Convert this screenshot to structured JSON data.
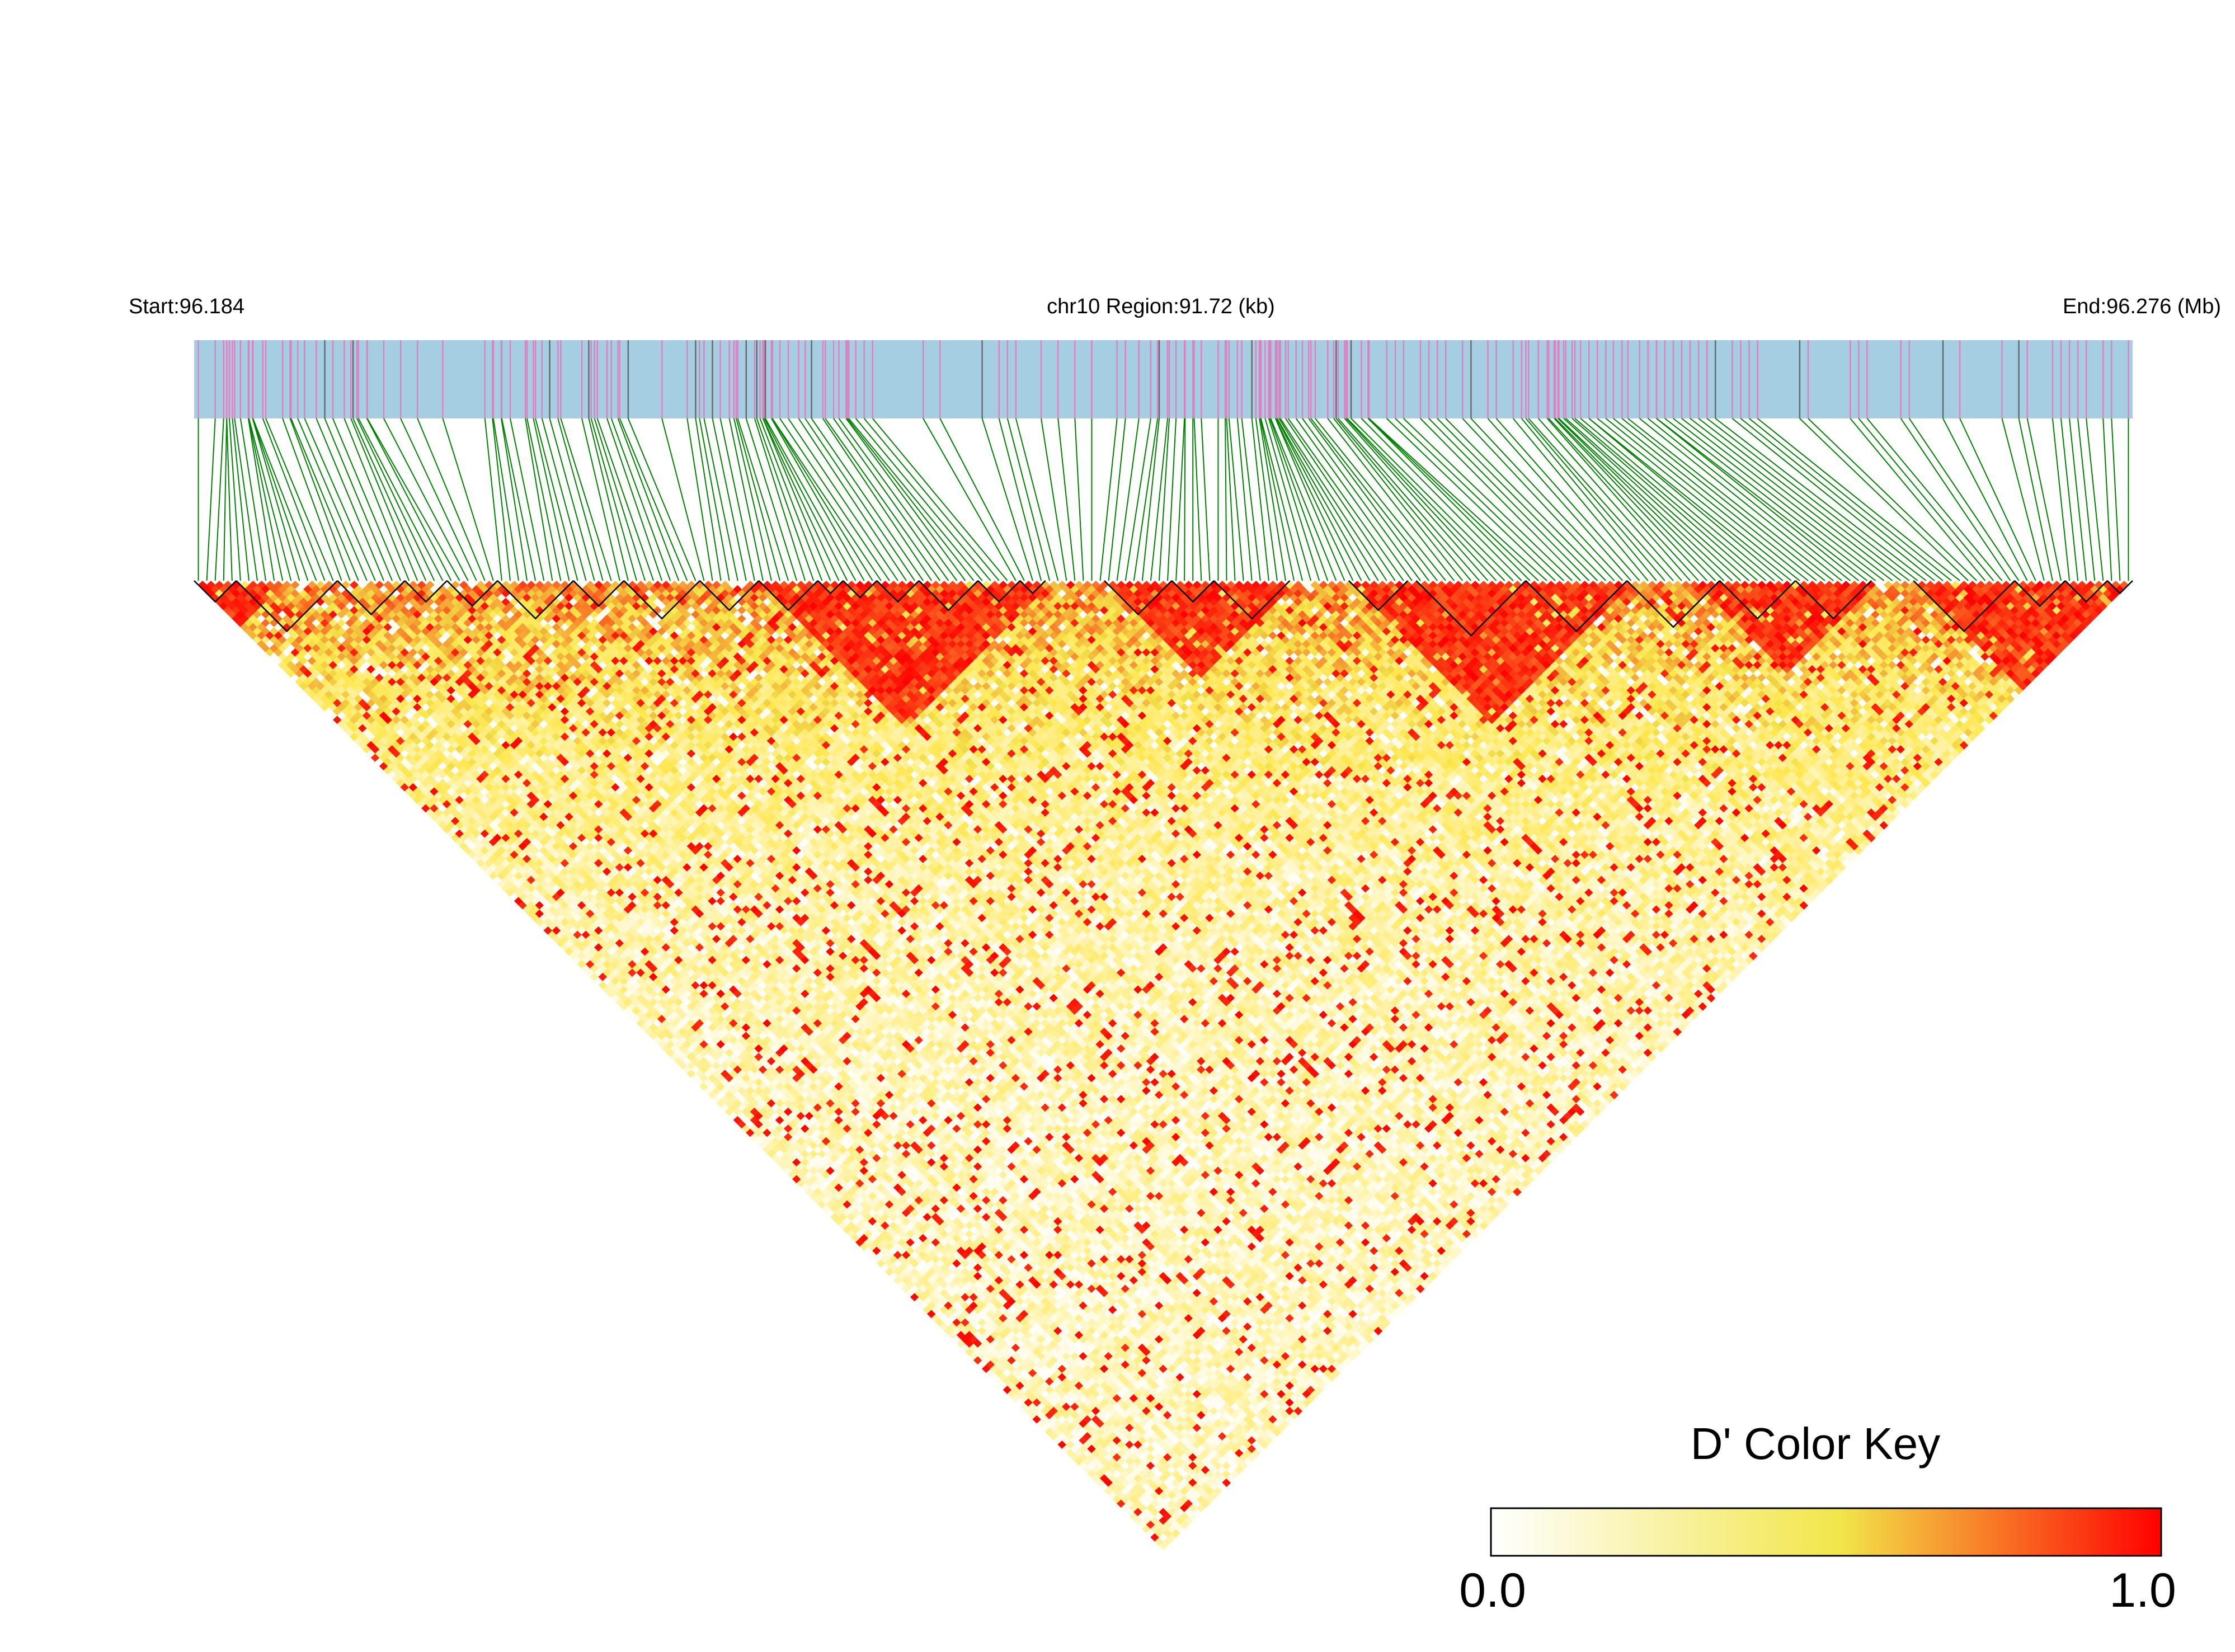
{
  "header": {
    "start_label": "Start:96.184",
    "region_label": "chr10 Region:91.72 (kb)",
    "end_label": "End:96.276 (Mb)"
  },
  "color_key": {
    "title": "D' Color Key",
    "min_label": "0.0",
    "max_label": "1.0",
    "stops": [
      "#ffffff",
      "#f2e64a",
      "#ff0000"
    ]
  },
  "colors": {
    "track_bg": "#a6cee3",
    "snp_marker": "#e07fc0",
    "snp_marker_dark": "#666666",
    "connector": "#008000",
    "block_outline": "#000000"
  },
  "chart_data": {
    "type": "heatmap",
    "title": "",
    "subtitle": "chr10 Region:91.72 (kb)",
    "chromosome": "chr10",
    "region_start_mb": 96.184,
    "region_end_mb": 96.276,
    "region_length_kb": 91.72,
    "metric": "D'",
    "value_range": [
      0.0,
      1.0
    ],
    "n_snps_approx": 230,
    "ld_blocks_fraction_of_region": [
      [
        0.0,
        0.023
      ],
      [
        0.023,
        0.073
      ],
      [
        0.073,
        0.11
      ],
      [
        0.11,
        0.13
      ],
      [
        0.13,
        0.155
      ],
      [
        0.155,
        0.195
      ],
      [
        0.195,
        0.22
      ],
      [
        0.22,
        0.26
      ],
      [
        0.26,
        0.29
      ],
      [
        0.29,
        0.32
      ],
      [
        0.32,
        0.335
      ],
      [
        0.335,
        0.35
      ],
      [
        0.35,
        0.375
      ],
      [
        0.375,
        0.405
      ],
      [
        0.405,
        0.425
      ],
      [
        0.425,
        0.44
      ],
      [
        0.47,
        0.505
      ],
      [
        0.505,
        0.525
      ],
      [
        0.525,
        0.565
      ],
      [
        0.595,
        0.625
      ],
      [
        0.63,
        0.685
      ],
      [
        0.685,
        0.74
      ],
      [
        0.74,
        0.785
      ],
      [
        0.785,
        0.825
      ],
      [
        0.825,
        0.865
      ],
      [
        0.885,
        0.94
      ],
      [
        0.94,
        0.965
      ],
      [
        0.965,
        0.985
      ],
      [
        0.985,
        1.0
      ]
    ],
    "strong_ld_regions_fraction": [
      [
        0.0,
        0.045
      ],
      [
        0.29,
        0.44
      ],
      [
        0.47,
        0.565
      ],
      [
        0.595,
        0.74
      ],
      [
        0.775,
        0.865
      ],
      [
        0.885,
        1.0
      ]
    ]
  }
}
